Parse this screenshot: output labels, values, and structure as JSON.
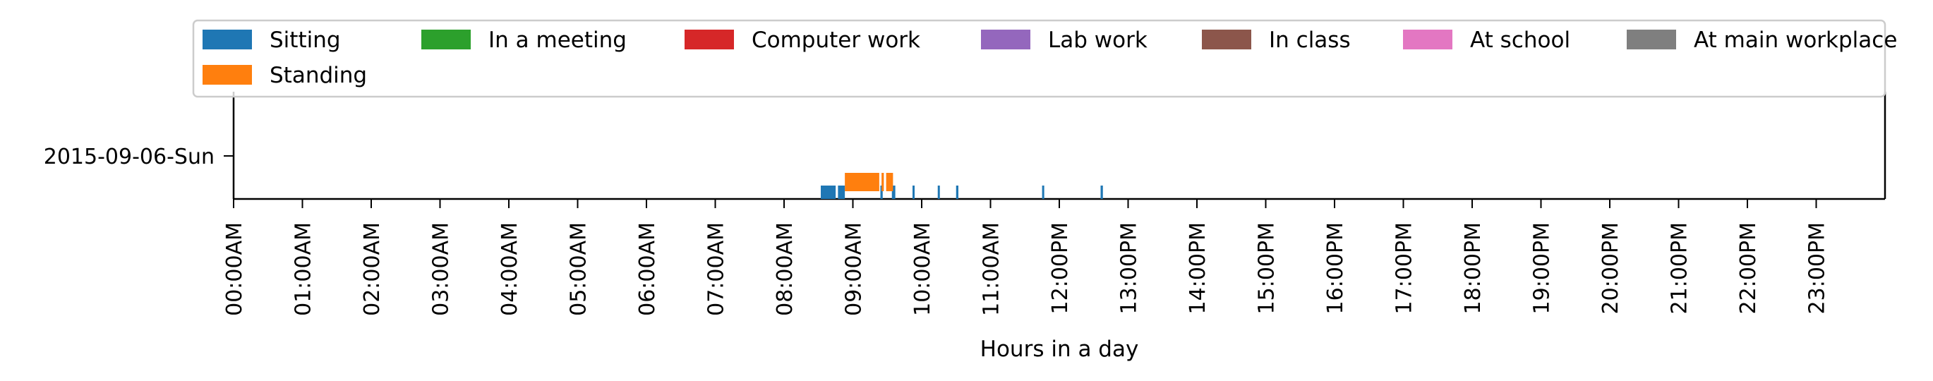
{
  "chart_data": {
    "type": "timeline",
    "title": "",
    "xlabel": "Hours in a day",
    "ylabel": "",
    "xlim_hours": [
      0,
      24
    ],
    "x_tick_labels": [
      "00:00AM",
      "01:00AM",
      "02:00AM",
      "03:00AM",
      "04:00AM",
      "05:00AM",
      "06:00AM",
      "07:00AM",
      "08:00AM",
      "09:00AM",
      "10:00AM",
      "11:00AM",
      "12:00PM",
      "13:00PM",
      "14:00PM",
      "15:00PM",
      "16:00PM",
      "17:00PM",
      "18:00PM",
      "19:00PM",
      "20:00PM",
      "21:00PM",
      "22:00PM",
      "23:00PM"
    ],
    "categories": [
      "2015-09-06-Sun"
    ],
    "legend_placement": "top, spanning full width",
    "legend": [
      {
        "name": "Sitting",
        "color": "#1f77b4"
      },
      {
        "name": "In a meeting",
        "color": "#2ca02c"
      },
      {
        "name": "Computer work",
        "color": "#d62728"
      },
      {
        "name": "Lab work",
        "color": "#9467bd"
      },
      {
        "name": "In class",
        "color": "#8c564b"
      },
      {
        "name": "At school",
        "color": "#e377c2"
      },
      {
        "name": "At main workplace",
        "color": "#7f7f7f"
      },
      {
        "name": "Standing",
        "color": "#ff7f0e"
      }
    ],
    "series": [
      {
        "name": "Sitting",
        "color": "#1f77b4",
        "intervals": [
          [
            "08:32",
            "08:45"
          ],
          [
            "08:47",
            "08:53"
          ],
          [
            "09:24",
            "09:26"
          ],
          [
            "09:34",
            "09:37"
          ],
          [
            "09:52",
            "09:53"
          ],
          [
            "10:14",
            "10:15"
          ],
          [
            "10:30",
            "10:32"
          ],
          [
            "11:45",
            "11:46"
          ],
          [
            "12:36",
            "12:38"
          ]
        ]
      },
      {
        "name": "Standing",
        "color": "#ff7f0e",
        "intervals": [
          [
            "08:53",
            "09:23"
          ],
          [
            "09:25",
            "09:27"
          ],
          [
            "09:29",
            "09:35"
          ]
        ]
      }
    ]
  }
}
